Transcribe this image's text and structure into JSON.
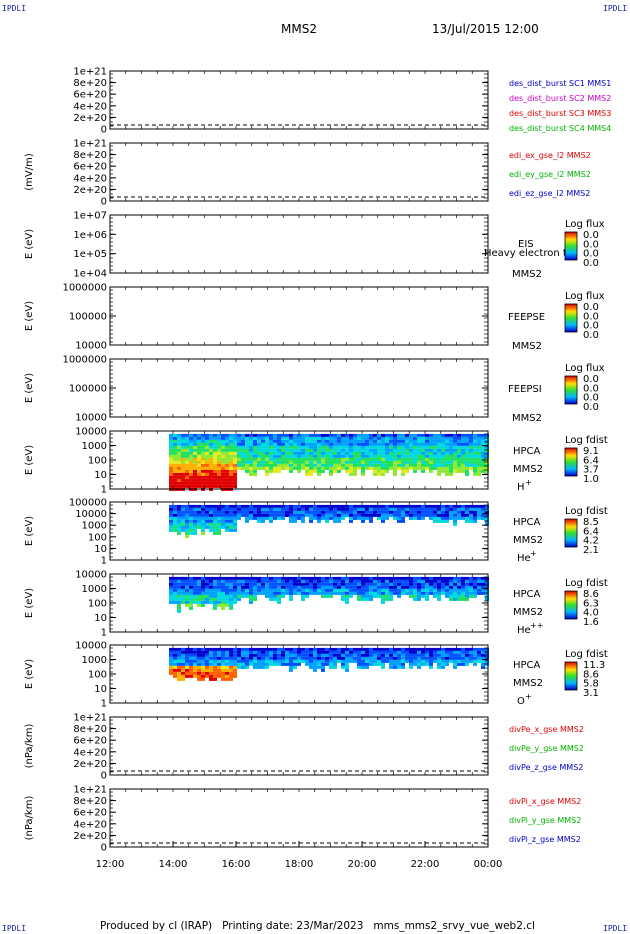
{
  "corner_labels": {
    "top_left": "IPDLI",
    "top_right": "IPDLI",
    "bottom_left": "IPDLI",
    "bottom_right": "IPDLI"
  },
  "header": {
    "spacecraft": "MMS2",
    "datetime": "13/Jul/2015 12:00"
  },
  "footer": {
    "text": "Produced by cl (IRAP)   Printing date: 23/Mar/2023   mms_mms2_srvy_vue_web2.cl"
  },
  "time_axis": {
    "labels": [
      "12:00",
      "14:00",
      "16:00",
      "18:00",
      "20:00",
      "22:00",
      "00:00"
    ]
  },
  "chart_data": [
    {
      "id": "des",
      "type": "line",
      "ylabel": "",
      "ytick_labels": [
        "1e+21",
        "8e+20",
        "6e+20",
        "4e+20",
        "2e+20",
        "0"
      ],
      "series": [
        {
          "name": "des_dist_burst SC1 MMS1",
          "color": "#0000c8"
        },
        {
          "name": "des_dist_burst SC2 MMS2",
          "color": "#c800c8"
        },
        {
          "name": "des_dist_burst SC3 MMS3",
          "color": "#e00000"
        },
        {
          "name": "des_dist_burst SC4 MMS4",
          "color": "#00b400"
        }
      ]
    },
    {
      "id": "edi",
      "type": "line",
      "ylabel": "(mV/m)",
      "ytick_labels": [
        "1e+21",
        "8e+20",
        "6e+20",
        "4e+20",
        "2e+20",
        "0"
      ],
      "series": [
        {
          "name": "edi_ex_gse_l2 MMS2",
          "color": "#e00000"
        },
        {
          "name": "edi_ey_gse_l2 MMS2",
          "color": "#00b400"
        },
        {
          "name": "edi_ez_gse_l2 MMS2",
          "color": "#0000c8"
        }
      ]
    },
    {
      "id": "eis",
      "type": "heatmap",
      "ylabel": "E (eV)",
      "ytick_labels": [
        "1e+07",
        "1e+06",
        "1e+05",
        "1e+04"
      ],
      "right_labels": [
        "EIS",
        "Heavy electron to",
        "MMS2"
      ],
      "colorbar": {
        "title": "Log flux",
        "ticks": [
          "0.0",
          "0.0",
          "0.0",
          "0.0"
        ]
      }
    },
    {
      "id": "feepse",
      "type": "heatmap",
      "ylabel": "E (eV)",
      "ytick_labels": [
        "1000000",
        "100000",
        "10000"
      ],
      "right_labels": [
        "FEEPSE",
        "MMS2"
      ],
      "colorbar": {
        "title": "Log flux",
        "ticks": [
          "0.0",
          "0.0",
          "0.0",
          "0.0"
        ]
      }
    },
    {
      "id": "feepsi",
      "type": "heatmap",
      "ylabel": "E (eV)",
      "ytick_labels": [
        "1000000",
        "100000",
        "10000"
      ],
      "right_labels": [
        "FEEPSI",
        "MMS2"
      ],
      "colorbar": {
        "title": "Log flux",
        "ticks": [
          "0.0",
          "0.0",
          "0.0",
          "0.0"
        ]
      }
    },
    {
      "id": "hpca_h",
      "type": "heatmap",
      "ylabel": "E (eV)",
      "ytick_labels": [
        "10000",
        "1000",
        "100",
        "10",
        "1"
      ],
      "right_labels": [
        "HPCA",
        "MMS2"
      ],
      "species": "H",
      "species_sup": "+",
      "colorbar": {
        "title": "Log fdist",
        "ticks": [
          "9.1",
          "6.4",
          "3.7",
          "1.0"
        ]
      }
    },
    {
      "id": "hpca_he",
      "type": "heatmap",
      "ylabel": "E (eV)",
      "ytick_labels": [
        "100000",
        "10000",
        "1000",
        "100",
        "10",
        "1"
      ],
      "right_labels": [
        "HPCA",
        "MMS2"
      ],
      "species": "He",
      "species_sup": "+",
      "colorbar": {
        "title": "Log fdist",
        "ticks": [
          "8.5",
          "6.4",
          "4.2",
          "2.1"
        ]
      }
    },
    {
      "id": "hpca_he2",
      "type": "heatmap",
      "ylabel": "E (eV)",
      "ytick_labels": [
        "10000",
        "1000",
        "100",
        "10",
        "1"
      ],
      "right_labels": [
        "HPCA",
        "MMS2"
      ],
      "species": "He",
      "species_sup": "++",
      "colorbar": {
        "title": "Log fdist",
        "ticks": [
          "8.6",
          "6.3",
          "4.0",
          "1.6"
        ]
      }
    },
    {
      "id": "hpca_o",
      "type": "heatmap",
      "ylabel": "E (eV)",
      "ytick_labels": [
        "10000",
        "1000",
        "100",
        "10",
        "1"
      ],
      "right_labels": [
        "HPCA",
        "MMS2"
      ],
      "species": "O",
      "species_sup": "+",
      "colorbar": {
        "title": "Log fdist",
        "ticks": [
          "11.3",
          "8.6",
          "5.8",
          "3.1"
        ]
      }
    },
    {
      "id": "divpe",
      "type": "line",
      "ylabel": "(nPa/km)",
      "ytick_labels": [
        "1e+21",
        "8e+20",
        "6e+20",
        "4e+20",
        "2e+20",
        "0"
      ],
      "series": [
        {
          "name": "divPe_x_gse MMS2",
          "color": "#e00000"
        },
        {
          "name": "divPe_y_gse MMS2",
          "color": "#00b400"
        },
        {
          "name": "divPe_z_gse MMS2",
          "color": "#0000c8"
        }
      ]
    },
    {
      "id": "divpi",
      "type": "line",
      "ylabel": "(nPa/km)",
      "ytick_labels": [
        "1e+21",
        "8e+20",
        "6e+20",
        "4e+20",
        "2e+20",
        "0"
      ],
      "series": [
        {
          "name": "divPi_x_gse MMS2",
          "color": "#e00000"
        },
        {
          "name": "divPi_y_gse MMS2",
          "color": "#00b400"
        },
        {
          "name": "divPi_z_gse MMS2",
          "color": "#0000c8"
        }
      ]
    }
  ]
}
